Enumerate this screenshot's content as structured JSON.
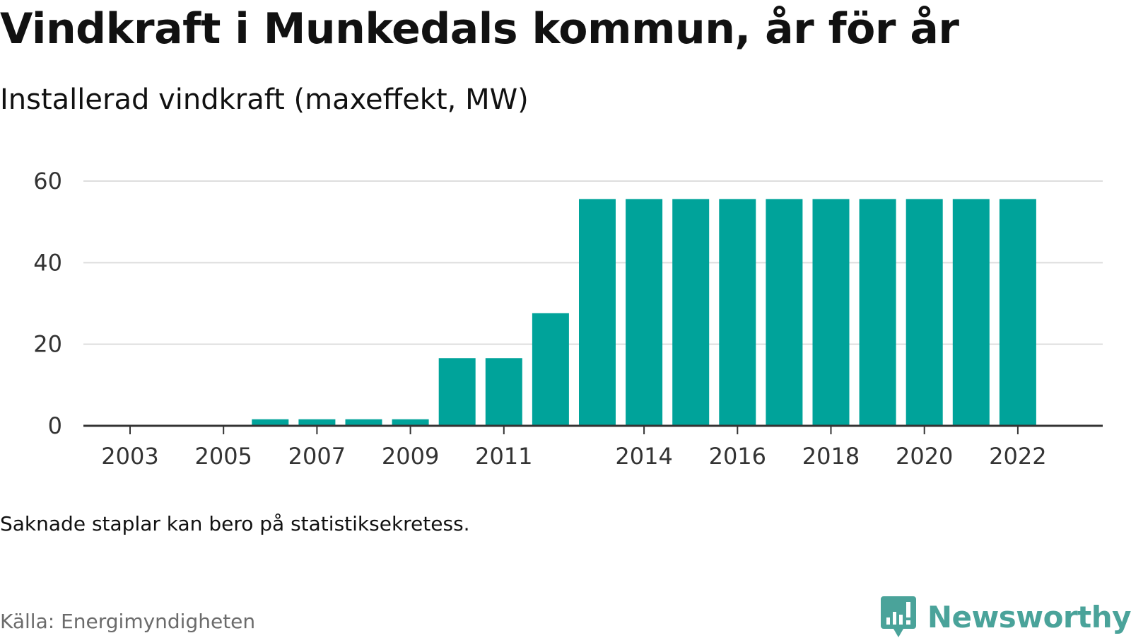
{
  "header": {
    "title": "Vindkraft i Munkedals kommun, år för år",
    "subtitle": "Installerad vindkraft (maxeffekt, MW)"
  },
  "footer": {
    "note": "Saknade staplar kan bero på statistiksekretess.",
    "source": "Källa: Energimyndigheten",
    "brand": "Newsworthy",
    "brand_icon": "bar-chart-speech-bubble-icon"
  },
  "colors": {
    "bar": "#00a39a",
    "grid": "#dddddd",
    "axis": "#333333",
    "brand": "#4aa39a"
  },
  "chart_data": {
    "type": "bar",
    "title": "Vindkraft i Munkedals kommun, år för år",
    "subtitle": "Installerad vindkraft (maxeffekt, MW)",
    "xlabel": "",
    "ylabel": "",
    "categories": [
      2003,
      2004,
      2005,
      2006,
      2007,
      2008,
      2009,
      2010,
      2011,
      2012,
      2013,
      2014,
      2015,
      2016,
      2017,
      2018,
      2019,
      2020,
      2021,
      2022
    ],
    "values": [
      0,
      0,
      0,
      1.6,
      1.6,
      1.6,
      1.6,
      16.6,
      16.6,
      27.6,
      55.6,
      55.6,
      55.6,
      55.6,
      55.6,
      55.6,
      55.6,
      55.6,
      55.6,
      55.6
    ],
    "x_tick_labels": [
      "2003",
      "2005",
      "2007",
      "2009",
      "2011",
      "2014",
      "2016",
      "2018",
      "2020",
      "2022"
    ],
    "y_ticks": [
      0,
      20,
      40,
      60
    ],
    "ylim": [
      0,
      60
    ],
    "grid": true,
    "legend": "none"
  }
}
